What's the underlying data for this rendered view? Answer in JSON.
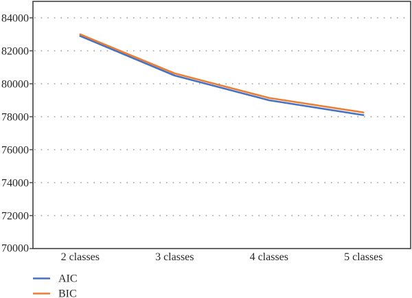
{
  "chart_data": {
    "type": "line",
    "title": "",
    "xlabel": "",
    "ylabel": "",
    "categories": [
      "2 classes",
      "3 classes",
      "4 classes",
      "5 classes"
    ],
    "series": [
      {
        "name": "AIC",
        "color": "#4472c4",
        "values": [
          82900,
          80500,
          79000,
          78100
        ]
      },
      {
        "name": "BIC",
        "color": "#ed7d31",
        "values": [
          83000,
          80630,
          79140,
          78260
        ]
      }
    ],
    "yticks": [
      84000,
      82000,
      80000,
      78000,
      76000,
      74000,
      72000,
      70000
    ],
    "ylim": [
      70000,
      85000
    ],
    "grid": "horizontal-dotted",
    "legend_position": "bottom-left",
    "colors": {
      "axis": "#404040",
      "grid": "#888888",
      "text": "#262626",
      "background": "#ffffff"
    }
  }
}
